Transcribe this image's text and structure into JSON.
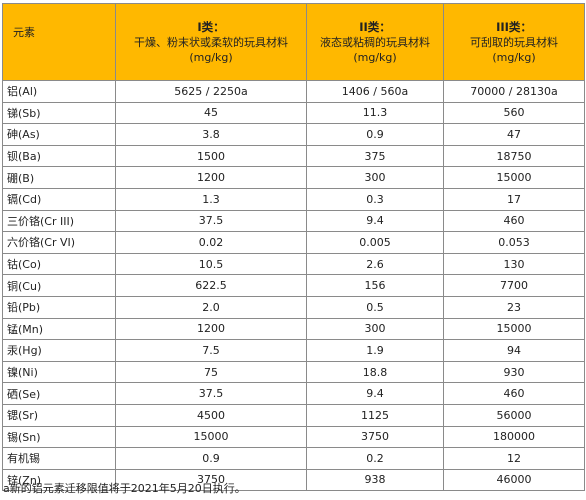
{
  "table": {
    "header": {
      "element": "元素",
      "col1": {
        "title": "I类：",
        "desc": "干燥、粉末状或柔软的玩具材料",
        "unit": "(mg/kg)"
      },
      "col2": {
        "title": "II类：",
        "desc": "液态或粘稠的玩具材料",
        "unit": "(mg/kg)"
      },
      "col3": {
        "title": "III类：",
        "desc": "可刮取的玩具材料",
        "unit": "(mg/kg)"
      }
    },
    "rows": [
      [
        "铝(Al)",
        "5625 / 2250a",
        "1406 / 560a",
        "70000 / 28130a"
      ],
      [
        "锑(Sb)",
        "45",
        "11.3",
        "560"
      ],
      [
        "砷(As)",
        "3.8",
        "0.9",
        "47"
      ],
      [
        "钡(Ba)",
        "1500",
        "375",
        "18750"
      ],
      [
        "硼(B)",
        "1200",
        "300",
        "15000"
      ],
      [
        "镉(Cd)",
        "1.3",
        "0.3",
        "17"
      ],
      [
        "三价铬(Cr III)",
        "37.5",
        "9.4",
        "460"
      ],
      [
        "六价铬(Cr VI)",
        "0.02",
        "0.005",
        "0.053"
      ],
      [
        "钴(Co)",
        "10.5",
        "2.6",
        "130"
      ],
      [
        "铜(Cu)",
        "622.5",
        "156",
        "7700"
      ],
      [
        "铅(Pb)",
        "2.0",
        "0.5",
        "23"
      ],
      [
        "锰(Mn)",
        "1200",
        "300",
        "15000"
      ],
      [
        "汞(Hg)",
        "7.5",
        "1.9",
        "94"
      ],
      [
        "镍(Ni)",
        "75",
        "18.8",
        "930"
      ],
      [
        "硒(Se)",
        "37.5",
        "9.4",
        "460"
      ],
      [
        "锶(Sr)",
        "4500",
        "1125",
        "56000"
      ],
      [
        "锡(Sn)",
        "15000",
        "3750",
        "180000"
      ],
      [
        "有机锡",
        "0.9",
        "0.2",
        "12"
      ],
      [
        "锌(Zn)",
        "3750",
        "938",
        "46000"
      ]
    ]
  },
  "footnote": "a新的铝元素迁移限值将于2021年5月20日执行。",
  "colors": {
    "header_bg": "#ffb800",
    "border": "#8a8a8a"
  }
}
